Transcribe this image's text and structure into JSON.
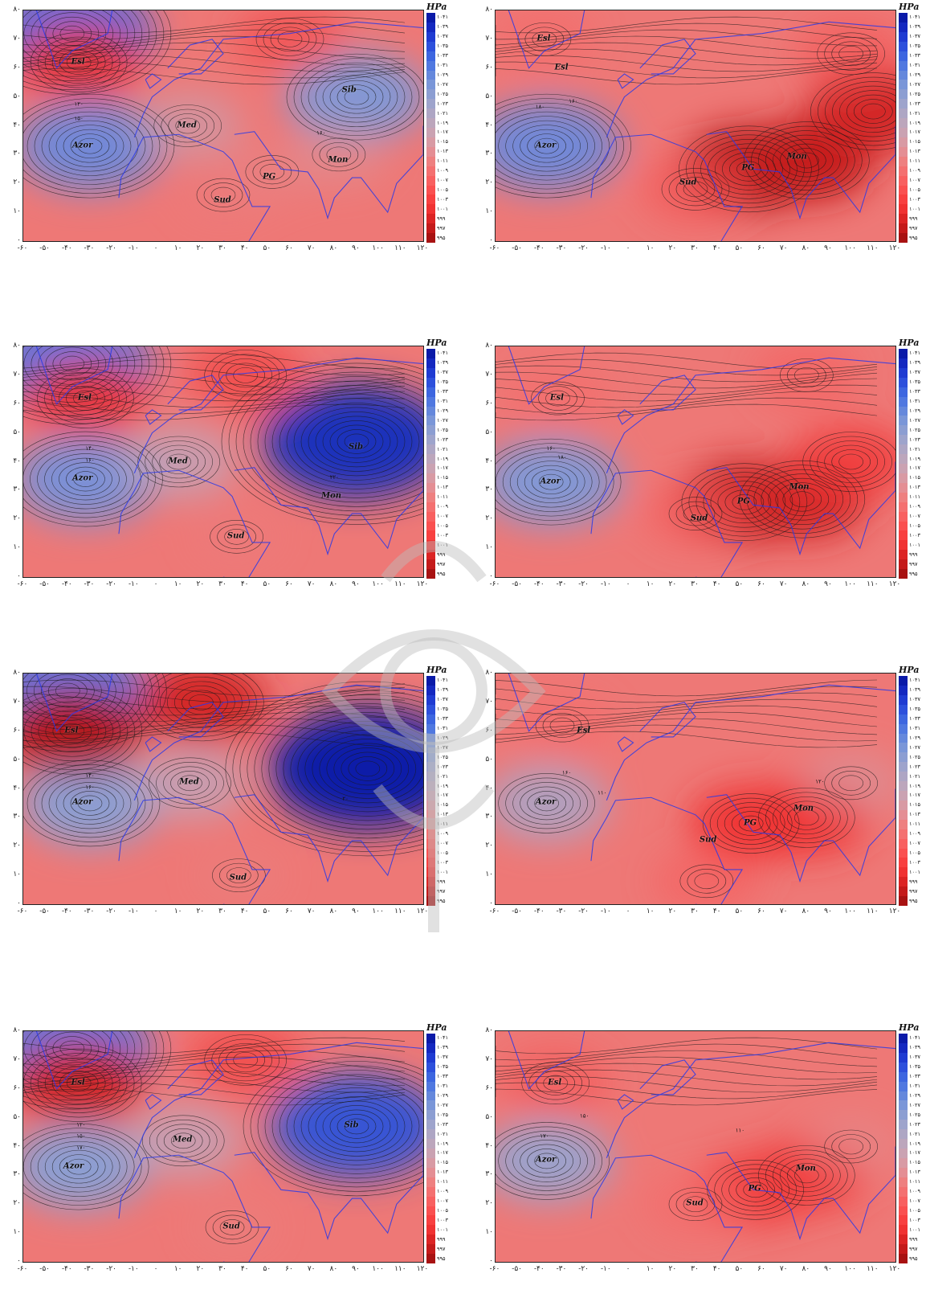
{
  "colorbar": {
    "unit": "HPa",
    "levels": [
      "۱۰۴۱",
      "۱۰۳۹",
      "۱۰۳۷",
      "۱۰۳۵",
      "۱۰۳۳",
      "۱۰۳۱",
      "۱۰۲۹",
      "۱۰۲۷",
      "۱۰۲۵",
      "۱۰۲۳",
      "۱۰۲۱",
      "۱۰۱۹",
      "۱۰۱۷",
      "۱۰۱۵",
      "۱۰۱۳",
      "۱۰۱۱",
      "۱۰۰۹",
      "۱۰۰۷",
      "۱۰۰۵",
      "۱۰۰۳",
      "۱۰۰۱",
      "۹۹۹",
      "۹۹۷",
      "۹۹۵"
    ],
    "colors": [
      "#0a1aa8",
      "#1428c0",
      "#1f3bd2",
      "#2d50dc",
      "#3d66e0",
      "#5078e0",
      "#6588dc",
      "#7a96d8",
      "#8c9ed2",
      "#9ea4cc",
      "#aea6c4",
      "#bca6bc",
      "#caa2b2",
      "#d89aa4",
      "#e48e94",
      "#ee8080",
      "#f47070",
      "#f86060",
      "#fa5050",
      "#f84040",
      "#f03232",
      "#dc2424",
      "#c41a1a",
      "#a81212"
    ]
  },
  "axes": {
    "y_ticks": [
      "۸۰",
      "۷۰",
      "۶۰",
      "۵۰",
      "۴۰",
      "۳۰",
      "۲۰",
      "۱۰",
      "۰"
    ],
    "x_ticks": [
      "-۶۰",
      "-۵۰",
      "-۴۰",
      "-۳۰",
      "-۲۰",
      "-۱۰",
      "۰",
      "۱۰",
      "۲۰",
      "۳۰",
      "۴۰",
      "۵۰",
      "۶۰",
      "۷۰",
      "۸۰",
      "۹۰",
      "۱۰۰",
      "۱۱۰",
      "۱۲۰"
    ],
    "lon_range": [
      -60,
      120
    ],
    "lat_range": [
      0,
      80
    ]
  },
  "panels": [
    {
      "id": "r1-left",
      "labels": [
        {
          "text": "Esl",
          "lon": -35,
          "lat": 62
        },
        {
          "text": "Azor",
          "lon": -33,
          "lat": 33
        },
        {
          "text": "Med",
          "lon": 14,
          "lat": 40
        },
        {
          "text": "Sib",
          "lon": 87,
          "lat": 52
        },
        {
          "text": "Mon",
          "lon": 82,
          "lat": 28
        },
        {
          "text": "PG",
          "lon": 51,
          "lat": 22
        },
        {
          "text": "Sud",
          "lon": 30,
          "lat": 14
        }
      ],
      "contour_labels": [
        {
          "text": "۱۲۰",
          "lon": -35,
          "lat": 47
        },
        {
          "text": "۱۵۰",
          "lon": -35,
          "lat": 42
        },
        {
          "text": "۱۶۰",
          "lon": 74,
          "lat": 37
        }
      ],
      "centers": [
        {
          "lon": -30,
          "lat": 33,
          "p": 1027
        },
        {
          "lon": -38,
          "lat": 72,
          "p": 1031
        },
        {
          "lon": 90,
          "lat": 50,
          "p": 1025
        },
        {
          "lon": 14,
          "lat": 40,
          "p": 1016
        },
        {
          "lon": 30,
          "lat": 16,
          "p": 1009
        },
        {
          "lon": 52,
          "lat": 24,
          "p": 1011
        },
        {
          "lon": 82,
          "lat": 30,
          "p": 1013
        },
        {
          "lon": -35,
          "lat": 62,
          "p": 1000
        },
        {
          "lon": 60,
          "lat": 70,
          "p": 1003
        }
      ]
    },
    {
      "id": "r1-right",
      "labels": [
        {
          "text": "Esl",
          "lon": -38,
          "lat": 70
        },
        {
          "text": "Esl",
          "lon": -30,
          "lat": 60
        },
        {
          "text": "Azor",
          "lon": -37,
          "lat": 33
        },
        {
          "text": "PG",
          "lon": 54,
          "lat": 25
        },
        {
          "text": "Mon",
          "lon": 76,
          "lat": 29
        },
        {
          "text": "Sud",
          "lon": 27,
          "lat": 20
        }
      ],
      "contour_labels": [
        {
          "text": "۱۸۰",
          "lon": -40,
          "lat": 46
        },
        {
          "text": "۱۶۰",
          "lon": -25,
          "lat": 48
        }
      ],
      "centers": [
        {
          "lon": -37,
          "lat": 33,
          "p": 1027
        },
        {
          "lon": -38,
          "lat": 70,
          "p": 1006
        },
        {
          "lon": 54,
          "lat": 25,
          "p": 996
        },
        {
          "lon": 80,
          "lat": 28,
          "p": 997
        },
        {
          "lon": 110,
          "lat": 45,
          "p": 998
        },
        {
          "lon": 30,
          "lat": 18,
          "p": 1004
        },
        {
          "lon": 100,
          "lat": 65,
          "p": 1004
        }
      ]
    },
    {
      "id": "r2-left",
      "labels": [
        {
          "text": "Esl",
          "lon": -32,
          "lat": 62
        },
        {
          "text": "Azor",
          "lon": -33,
          "lat": 34
        },
        {
          "text": "Med",
          "lon": 10,
          "lat": 40
        },
        {
          "text": "Sib",
          "lon": 90,
          "lat": 45
        },
        {
          "text": "Mon",
          "lon": 79,
          "lat": 28
        },
        {
          "text": "Sud",
          "lon": 36,
          "lat": 14
        }
      ],
      "contour_labels": [
        {
          "text": "۱۴۰",
          "lon": -30,
          "lat": 44
        },
        {
          "text": "۱۶۰",
          "lon": -30,
          "lat": 40
        },
        {
          "text": "۲۲۰",
          "lon": 80,
          "lat": 34
        }
      ],
      "centers": [
        {
          "lon": -32,
          "lat": 34,
          "p": 1026
        },
        {
          "lon": -38,
          "lat": 74,
          "p": 1030
        },
        {
          "lon": 90,
          "lat": 47,
          "p": 1038
        },
        {
          "lon": 10,
          "lat": 40,
          "p": 1018
        },
        {
          "lon": 36,
          "lat": 14,
          "p": 1009
        },
        {
          "lon": -32,
          "lat": 62,
          "p": 1000
        },
        {
          "lon": 40,
          "lat": 70,
          "p": 1002
        }
      ]
    },
    {
      "id": "r2-right",
      "labels": [
        {
          "text": "Esl",
          "lon": -32,
          "lat": 62
        },
        {
          "text": "Azor",
          "lon": -35,
          "lat": 33
        },
        {
          "text": "PG",
          "lon": 52,
          "lat": 26
        },
        {
          "text": "Mon",
          "lon": 77,
          "lat": 31
        },
        {
          "text": "Sud",
          "lon": 32,
          "lat": 20
        }
      ],
      "contour_labels": [
        {
          "text": "۱۶۰",
          "lon": -35,
          "lat": 44
        },
        {
          "text": "۱۸۰",
          "lon": -30,
          "lat": 41
        }
      ],
      "centers": [
        {
          "lon": -35,
          "lat": 33,
          "p": 1025
        },
        {
          "lon": -32,
          "lat": 62,
          "p": 1006
        },
        {
          "lon": 52,
          "lat": 26,
          "p": 997
        },
        {
          "lon": 78,
          "lat": 27,
          "p": 998
        },
        {
          "lon": 100,
          "lat": 40,
          "p": 1001
        },
        {
          "lon": 30,
          "lat": 22,
          "p": 1005
        },
        {
          "lon": 80,
          "lat": 70,
          "p": 1005
        }
      ]
    },
    {
      "id": "r3-left",
      "labels": [
        {
          "text": "Esl",
          "lon": -38,
          "lat": 60
        },
        {
          "text": "Azor",
          "lon": -33,
          "lat": 35
        },
        {
          "text": "Med",
          "lon": 15,
          "lat": 42
        },
        {
          "text": "Sud",
          "lon": 37,
          "lat": 9
        }
      ],
      "contour_labels": [
        {
          "text": "۱۴۰",
          "lon": -30,
          "lat": 44
        },
        {
          "text": "۱۶۰",
          "lon": -30,
          "lat": 40
        },
        {
          "text": "۲۰",
          "lon": 85,
          "lat": 36
        }
      ],
      "centers": [
        {
          "lon": -30,
          "lat": 35,
          "p": 1024
        },
        {
          "lon": -40,
          "lat": 74,
          "p": 1030
        },
        {
          "lon": 95,
          "lat": 47,
          "p": 1041
        },
        {
          "lon": 15,
          "lat": 42,
          "p": 1018
        },
        {
          "lon": 37,
          "lat": 10,
          "p": 1010
        },
        {
          "lon": -38,
          "lat": 60,
          "p": 996
        },
        {
          "lon": 20,
          "lat": 70,
          "p": 998
        }
      ]
    },
    {
      "id": "r3-right",
      "labels": [
        {
          "text": "Esl",
          "lon": -20,
          "lat": 60
        },
        {
          "text": "Azor",
          "lon": -37,
          "lat": 35
        },
        {
          "text": "PG",
          "lon": 55,
          "lat": 28
        },
        {
          "text": "Mon",
          "lon": 79,
          "lat": 33
        },
        {
          "text": "Sud",
          "lon": 36,
          "lat": 22
        }
      ],
      "contour_labels": [
        {
          "text": "۱۶۰",
          "lon": -28,
          "lat": 45
        },
        {
          "text": "۱۱۰",
          "lon": -12,
          "lat": 38
        },
        {
          "text": "۱۲۰",
          "lon": 86,
          "lat": 42
        }
      ],
      "centers": [
        {
          "lon": -37,
          "lat": 35,
          "p": 1020
        },
        {
          "lon": -30,
          "lat": 62,
          "p": 1006
        },
        {
          "lon": 55,
          "lat": 28,
          "p": 1000
        },
        {
          "lon": 80,
          "lat": 30,
          "p": 1000
        },
        {
          "lon": 100,
          "lat": 42,
          "p": 1014
        },
        {
          "lon": 35,
          "lat": 8,
          "p": 1005
        }
      ]
    },
    {
      "id": "r4-left",
      "labels": [
        {
          "text": "Esl",
          "lon": -35,
          "lat": 62
        },
        {
          "text": "Azor",
          "lon": -37,
          "lat": 33
        },
        {
          "text": "Med",
          "lon": 12,
          "lat": 42
        },
        {
          "text": "Sib",
          "lon": 88,
          "lat": 47
        },
        {
          "text": "Sud",
          "lon": 34,
          "lat": 12
        }
      ],
      "contour_labels": [
        {
          "text": "۱۲۰",
          "lon": -34,
          "lat": 47
        },
        {
          "text": "۱۵۰",
          "lon": -34,
          "lat": 43
        },
        {
          "text": "۱۷۰",
          "lon": -34,
          "lat": 39
        }
      ],
      "centers": [
        {
          "lon": -35,
          "lat": 33,
          "p": 1024
        },
        {
          "lon": -38,
          "lat": 74,
          "p": 1030
        },
        {
          "lon": 90,
          "lat": 47,
          "p": 1034
        },
        {
          "lon": 12,
          "lat": 42,
          "p": 1018
        },
        {
          "lon": 34,
          "lat": 12,
          "p": 1010
        },
        {
          "lon": -35,
          "lat": 62,
          "p": 998
        },
        {
          "lon": 40,
          "lat": 70,
          "p": 1002
        }
      ]
    },
    {
      "id": "r4-right",
      "labels": [
        {
          "text": "Esl",
          "lon": -33,
          "lat": 62
        },
        {
          "text": "Azor",
          "lon": -37,
          "lat": 35
        },
        {
          "text": "PG",
          "lon": 57,
          "lat": 25
        },
        {
          "text": "Mon",
          "lon": 80,
          "lat": 32
        },
        {
          "text": "Sud",
          "lon": 30,
          "lat": 20
        }
      ],
      "contour_labels": [
        {
          "text": "۱۷۰",
          "lon": -38,
          "lat": 43
        },
        {
          "text": "۱۵۰",
          "lon": -20,
          "lat": 50
        },
        {
          "text": "۱۱۰",
          "lon": 50,
          "lat": 45
        }
      ],
      "centers": [
        {
          "lon": -37,
          "lat": 35,
          "p": 1022
        },
        {
          "lon": -33,
          "lat": 62,
          "p": 1004
        },
        {
          "lon": 57,
          "lat": 25,
          "p": 1001
        },
        {
          "lon": 80,
          "lat": 30,
          "p": 1001
        },
        {
          "lon": 100,
          "lat": 40,
          "p": 1012
        },
        {
          "lon": 30,
          "lat": 20,
          "p": 1006
        }
      ]
    }
  ]
}
